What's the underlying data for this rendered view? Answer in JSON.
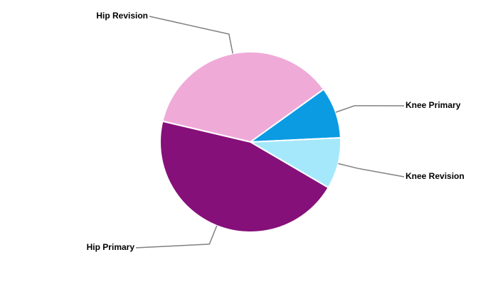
{
  "chart_data": {
    "type": "pie",
    "categories": [
      "Hip Revision",
      "Knee Primary",
      "Knee Revision",
      "Hip Primary"
    ],
    "values": [
      36.4,
      9.2,
      9.2,
      45.3
    ],
    "colors": [
      "#f0aad8",
      "#0a9be3",
      "#a6e8fb",
      "#86107a"
    ]
  }
}
